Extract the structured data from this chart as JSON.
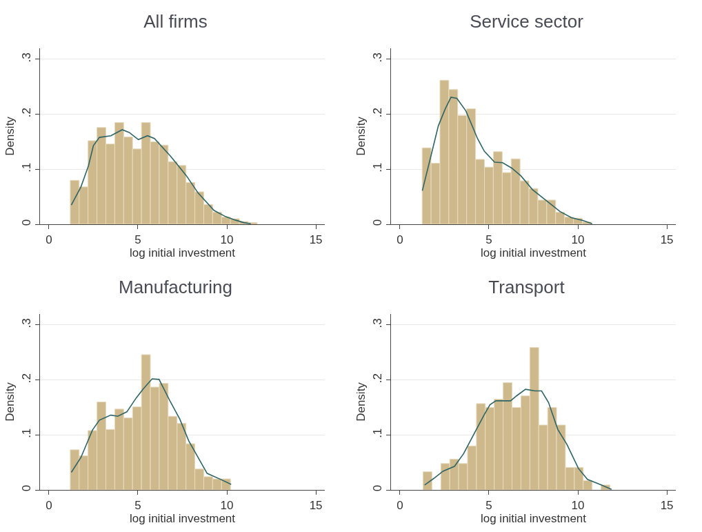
{
  "chart_data": [
    {
      "type": "histogram",
      "title": "All firms",
      "xlabel": "log initial investment",
      "ylabel": "Density",
      "color": "#cdb98b",
      "bins": [
        1.2,
        1.7,
        2.2,
        2.7,
        3.2,
        3.7,
        4.2,
        4.7,
        5.2,
        5.7,
        6.2,
        6.7,
        7.2,
        7.7,
        8.2,
        8.7,
        9.2,
        9.7,
        10.2,
        10.7,
        11.2,
        11.7
      ],
      "values": [
        0.08,
        0.068,
        0.152,
        0.176,
        0.146,
        0.185,
        0.159,
        0.137,
        0.185,
        0.15,
        0.144,
        0.114,
        0.107,
        0.076,
        0.059,
        0.036,
        0.022,
        0.013,
        0.01,
        0.005,
        0.003
      ],
      "series": [
        {
          "type": "line",
          "color": "#2e6466",
          "x": [
            1.26,
            1.8,
            2.22,
            2.5,
            2.84,
            3.48,
            4.12,
            4.51,
            5.03,
            5.54,
            5.93,
            6.83,
            7.73,
            8.38,
            9.28,
            9.92,
            10.44,
            10.95,
            11.34
          ],
          "values": [
            0.035,
            0.068,
            0.106,
            0.143,
            0.158,
            0.161,
            0.172,
            0.167,
            0.154,
            0.161,
            0.156,
            0.124,
            0.088,
            0.057,
            0.025,
            0.014,
            0.008,
            0.003,
            0.001
          ]
        }
      ],
      "xlim": [
        -0.5,
        15.5
      ],
      "xticks": [
        0,
        5,
        10,
        15
      ],
      "ylim": [
        0,
        0.32
      ],
      "yticks": [
        {
          "value": 0,
          "label": "0"
        },
        {
          "value": 0.1,
          "label": ".1"
        },
        {
          "value": 0.2,
          "label": ".2"
        },
        {
          "value": 0.3,
          "label": ".3"
        }
      ],
      "grid": "y"
    },
    {
      "type": "histogram",
      "title": "Service sector",
      "xlabel": "log initial investment",
      "ylabel": "Density",
      "color": "#cdb98b",
      "bins": [
        1.25,
        1.75,
        2.25,
        2.75,
        3.25,
        3.75,
        4.25,
        4.75,
        5.25,
        5.75,
        6.25,
        6.75,
        7.25,
        7.75,
        8.25,
        8.75,
        9.25,
        9.75,
        10.25,
        10.75
      ],
      "values": [
        0.139,
        0.111,
        0.262,
        0.245,
        0.198,
        0.21,
        0.118,
        0.104,
        0.132,
        0.094,
        0.119,
        0.079,
        0.065,
        0.044,
        0.044,
        0.022,
        0.013,
        0.011,
        0.004
      ],
      "series": [
        {
          "type": "line",
          "color": "#2e6466",
          "x": [
            1.26,
            1.78,
            2.16,
            2.55,
            2.87,
            3.2,
            3.71,
            4.36,
            4.74,
            5.32,
            5.77,
            6.29,
            6.8,
            7.45,
            8.22,
            9.0,
            9.64,
            10.28,
            10.8
          ],
          "values": [
            0.061,
            0.129,
            0.179,
            0.21,
            0.231,
            0.229,
            0.206,
            0.156,
            0.133,
            0.113,
            0.112,
            0.102,
            0.088,
            0.063,
            0.043,
            0.023,
            0.012,
            0.007,
            0.001
          ]
        }
      ],
      "xlim": [
        -0.5,
        15.5
      ],
      "xticks": [
        0,
        5,
        10,
        15
      ],
      "ylim": [
        0,
        0.32
      ],
      "yticks": [
        {
          "value": 0,
          "label": "0"
        },
        {
          "value": 0.1,
          "label": ".1"
        },
        {
          "value": 0.2,
          "label": ".2"
        },
        {
          "value": 0.3,
          "label": ".3"
        }
      ],
      "grid": "y"
    },
    {
      "type": "histogram",
      "title": "Manufacturing",
      "xlabel": "log initial investment",
      "ylabel": "Density",
      "color": "#cdb98b",
      "bins": [
        1.2,
        1.7,
        2.2,
        2.7,
        3.2,
        3.7,
        4.2,
        4.7,
        5.2,
        5.7,
        6.2,
        6.7,
        7.2,
        7.7,
        8.2,
        8.7,
        9.2,
        9.7,
        10.2
      ],
      "values": [
        0.073,
        0.062,
        0.108,
        0.16,
        0.11,
        0.147,
        0.131,
        0.151,
        0.246,
        0.187,
        0.194,
        0.134,
        0.121,
        0.084,
        0.038,
        0.024,
        0.02,
        0.02
      ],
      "series": [
        {
          "type": "line",
          "color": "#2e6466",
          "x": [
            1.26,
            1.8,
            2.45,
            2.84,
            3.48,
            3.87,
            4.38,
            4.9,
            5.28,
            5.8,
            6.19,
            6.83,
            7.35,
            7.86,
            8.38,
            8.89,
            9.66,
            10.24
          ],
          "values": [
            0.032,
            0.059,
            0.109,
            0.127,
            0.136,
            0.134,
            0.142,
            0.167,
            0.183,
            0.202,
            0.201,
            0.16,
            0.129,
            0.089,
            0.059,
            0.03,
            0.019,
            0.01
          ]
        }
      ],
      "xlim": [
        -0.5,
        15.5
      ],
      "xticks": [
        0,
        5,
        10,
        15
      ],
      "ylim": [
        0,
        0.32
      ],
      "yticks": [
        {
          "value": 0,
          "label": "0"
        },
        {
          "value": 0.1,
          "label": ".1"
        },
        {
          "value": 0.2,
          "label": ".2"
        },
        {
          "value": 0.3,
          "label": ".3"
        }
      ],
      "grid": "y"
    },
    {
      "type": "histogram",
      "title": "Transport",
      "xlabel": "log initial investment",
      "ylabel": "Density",
      "color": "#cdb98b",
      "bins": [
        1.3,
        1.8,
        2.3,
        2.8,
        3.3,
        3.8,
        4.3,
        4.8,
        5.3,
        5.8,
        6.3,
        6.8,
        7.3,
        7.8,
        8.3,
        8.8,
        9.3,
        9.8,
        10.3,
        10.8,
        11.3,
        11.8
      ],
      "values": [
        0.033,
        0,
        0.048,
        0.056,
        0.048,
        0.08,
        0.157,
        0.15,
        0.165,
        0.195,
        0.15,
        0.171,
        0.259,
        0.118,
        0.15,
        0.118,
        0.041,
        0.041,
        0.017,
        0,
        0.009
      ],
      "series": [
        {
          "type": "line",
          "color": "#2e6466",
          "x": [
            1.39,
            1.91,
            2.42,
            3.07,
            3.58,
            4.23,
            4.74,
            5.06,
            5.39,
            6.22,
            6.55,
            7.06,
            7.58,
            7.96,
            8.35,
            8.87,
            9.38,
            10.03,
            10.54,
            11.31,
            11.89
          ],
          "values": [
            0.009,
            0.021,
            0.034,
            0.043,
            0.066,
            0.106,
            0.137,
            0.155,
            0.162,
            0.162,
            0.171,
            0.183,
            0.18,
            0.18,
            0.159,
            0.11,
            0.083,
            0.039,
            0.019,
            0.009,
            0.001
          ]
        }
      ],
      "xlim": [
        -0.5,
        15.5
      ],
      "xticks": [
        0,
        5,
        10,
        15
      ],
      "ylim": [
        0,
        0.32
      ],
      "yticks": [
        {
          "value": 0,
          "label": "0"
        },
        {
          "value": 0.1,
          "label": ".1"
        },
        {
          "value": 0.2,
          "label": ".2"
        },
        {
          "value": 0.3,
          "label": ".3"
        }
      ],
      "grid": "y"
    }
  ]
}
